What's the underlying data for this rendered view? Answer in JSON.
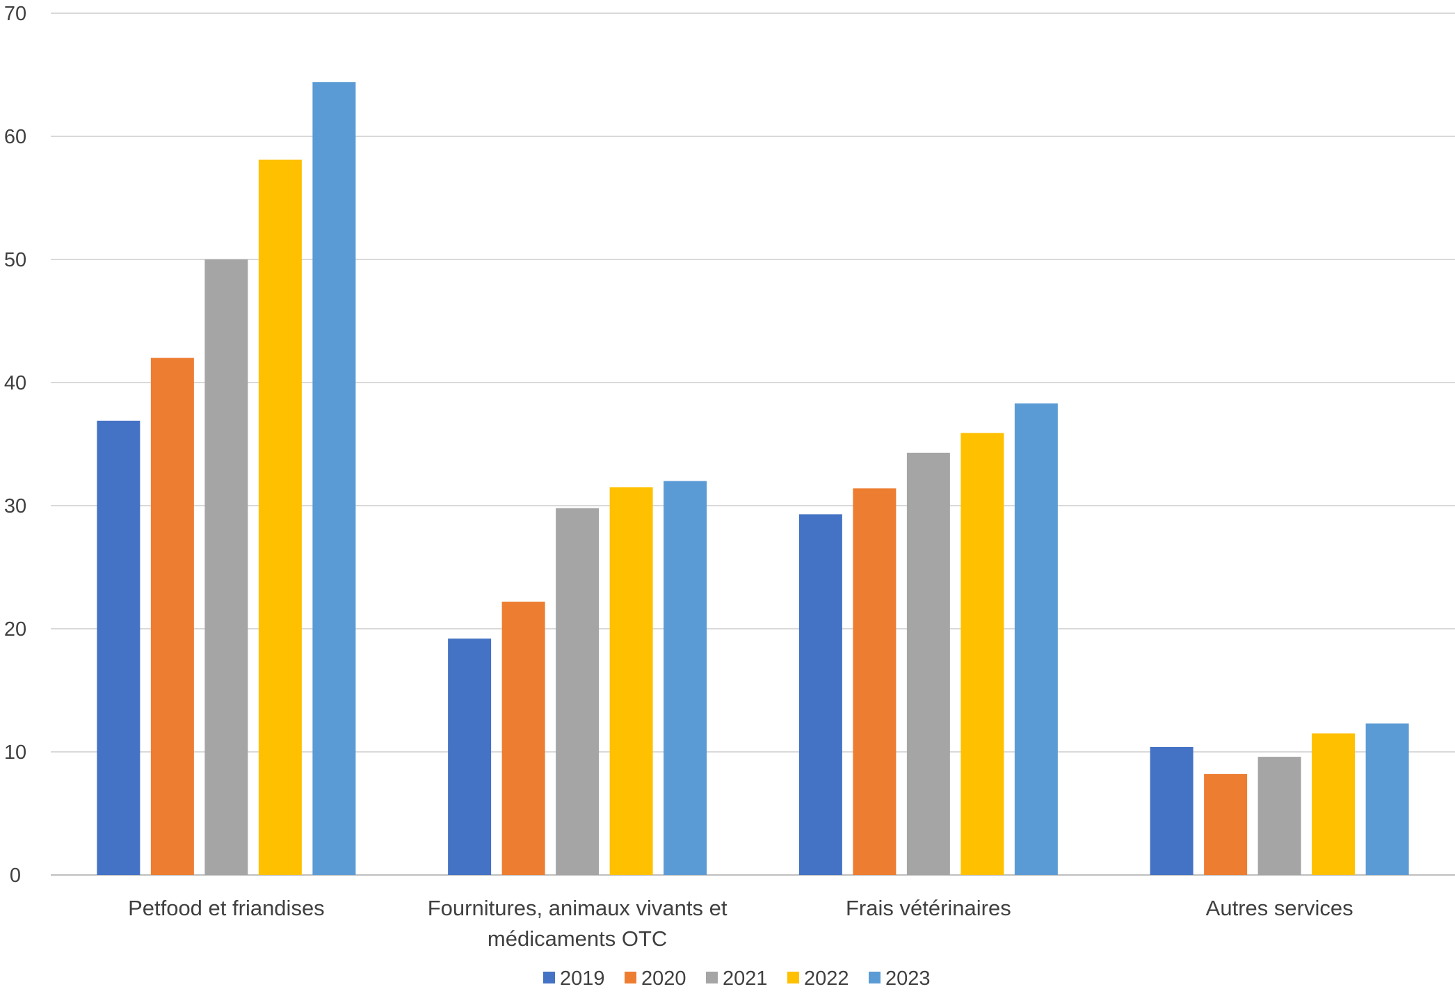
{
  "chart_data": {
    "type": "bar",
    "title": "",
    "xlabel": "",
    "ylabel": "",
    "ylim": [
      0,
      70
    ],
    "yticks": [
      0,
      10,
      20,
      30,
      40,
      50,
      60,
      70
    ],
    "grid": true,
    "legend_position": "bottom",
    "categories": [
      [
        "Petfood et friandises"
      ],
      [
        "Fournitures, animaux vivants et",
        "médicaments OTC"
      ],
      [
        "Frais vétérinaires"
      ],
      [
        "Autres services"
      ]
    ],
    "series": [
      {
        "name": "2019",
        "color": "#4472C4",
        "values": [
          36.9,
          19.2,
          29.3,
          10.4
        ]
      },
      {
        "name": "2020",
        "color": "#ED7D31",
        "values": [
          42.0,
          22.2,
          31.4,
          8.2
        ]
      },
      {
        "name": "2021",
        "color": "#A5A5A5",
        "values": [
          50.0,
          29.8,
          34.3,
          9.6
        ]
      },
      {
        "name": "2022",
        "color": "#FFC000",
        "values": [
          58.1,
          31.5,
          35.9,
          11.5
        ]
      },
      {
        "name": "2023",
        "color": "#5B9BD5",
        "values": [
          64.4,
          32.0,
          38.3,
          12.3
        ]
      }
    ]
  }
}
